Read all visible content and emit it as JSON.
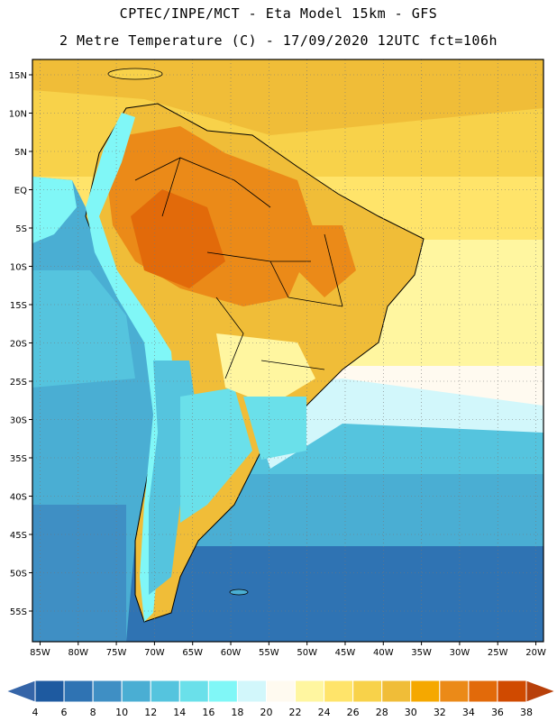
{
  "header": {
    "title_line1": "CPTEC/INPE/MCT -  Eta Model 15km - GFS",
    "title_line2": "2 Metre Temperature (C) - 17/09/2020 12UTC fct=106h"
  },
  "map": {
    "lon_ticks": [
      "85W",
      "80W",
      "75W",
      "70W",
      "65W",
      "60W",
      "55W",
      "50W",
      "45W",
      "40W",
      "35W",
      "30W",
      "25W",
      "20W"
    ],
    "lat_ticks": [
      "15N",
      "10N",
      "5N",
      "EQ",
      "5S",
      "10S",
      "15S",
      "20S",
      "25S",
      "30S",
      "35S",
      "40S",
      "45S",
      "50S",
      "55S"
    ],
    "lon_range": [
      -86,
      -19
    ],
    "lat_range": [
      17,
      -59
    ],
    "gridlines": true
  },
  "colorbar": {
    "labels": [
      "4",
      "6",
      "8",
      "10",
      "12",
      "14",
      "16",
      "18",
      "20",
      "22",
      "24",
      "26",
      "28",
      "30",
      "32",
      "34",
      "36",
      "38"
    ],
    "colors": [
      "#1e5aa0",
      "#2f73b3",
      "#3f8fc4",
      "#4aaed3",
      "#55c4de",
      "#6ae0ea",
      "#80f7f7",
      "#d2f7fb",
      "#fffaf0",
      "#fff6a0",
      "#ffe46a",
      "#f8d24a",
      "#f0bd38",
      "#f5a800",
      "#eb8a18",
      "#e26a0a",
      "#d04a00"
    ],
    "end_colors": [
      "#3565a8",
      "#b8400a"
    ]
  }
}
